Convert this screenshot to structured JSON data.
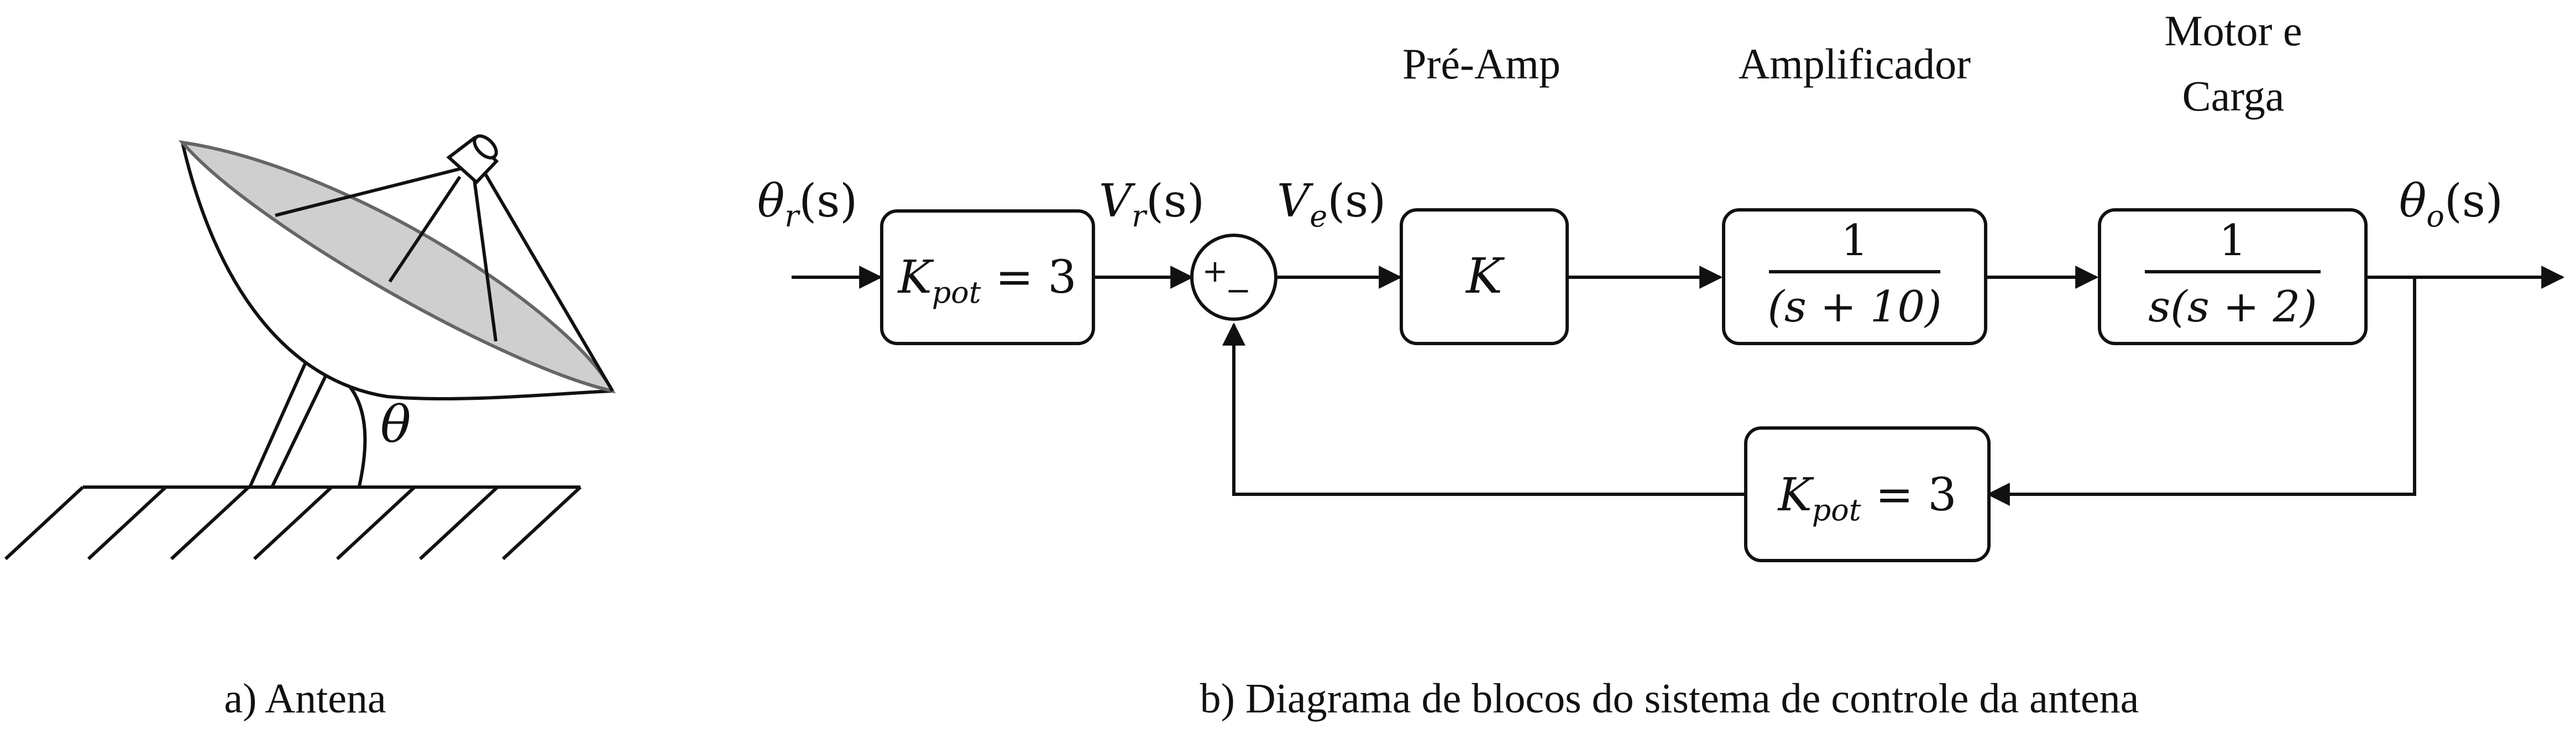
{
  "captions": {
    "antenna": "a) Antena",
    "diagram": "b) Diagrama de blocos do sistema de controle da antena"
  },
  "antenna": {
    "angle_label": "θ"
  },
  "stage_labels": {
    "preamp": "Pré-Amp",
    "amplifier": "Amplificador",
    "motor_line1": "Motor e",
    "motor_line2": "Carga"
  },
  "signals": {
    "input": {
      "sym": "θ",
      "sub": "r",
      "arg": "(s)"
    },
    "vr": {
      "sym": "V",
      "sub": "r",
      "arg": "(s)"
    },
    "ve": {
      "sym": "V",
      "sub": "e",
      "arg": "(s)"
    },
    "output": {
      "sym": "θ",
      "sub": "o",
      "arg": "(s)"
    }
  },
  "blocks": {
    "kpot_forward": {
      "sym": "K",
      "sub": "pot",
      "eq": " = 3"
    },
    "preamp_gain": "K",
    "amplifier": {
      "num": "1",
      "den": "(s + 10)"
    },
    "motor": {
      "num": "1",
      "den": "s(s + 2)"
    },
    "kpot_feedback": {
      "sym": "K",
      "sub": "pot",
      "eq": " = 3"
    }
  },
  "summing_junction": {
    "plus": "+",
    "minus": "−"
  }
}
